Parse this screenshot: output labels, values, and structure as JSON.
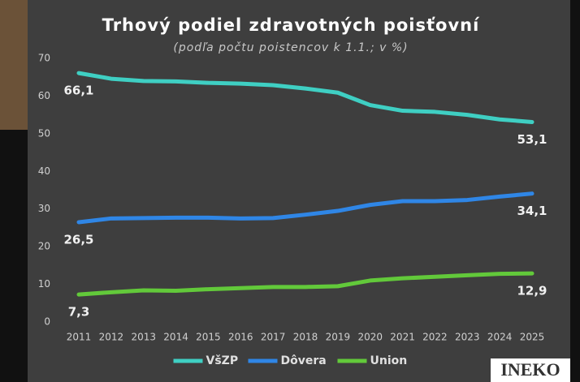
{
  "chart_data": {
    "type": "line",
    "title": "Trhový podiel zdravotných poisťovní",
    "subtitle": "(podľa počtu poistencov k 1.1.; v %)",
    "categories": [
      "2011",
      "2012",
      "2013",
      "2014",
      "2015",
      "2016",
      "2017",
      "2018",
      "2019",
      "2020",
      "2021",
      "2022",
      "2023",
      "2024",
      "2025"
    ],
    "series": [
      {
        "name": "VšZP",
        "color": "#3fcfc3",
        "values": [
          66.1,
          64.6,
          64.0,
          63.9,
          63.5,
          63.3,
          62.9,
          62.0,
          60.9,
          57.6,
          56.1,
          55.8,
          55.0,
          53.8,
          53.1
        ],
        "value_labels": [
          "66,1",
          null,
          null,
          null,
          null,
          null,
          null,
          null,
          null,
          null,
          null,
          null,
          null,
          null,
          "53,1"
        ]
      },
      {
        "name": "Dôvera",
        "color": "#2f86e6",
        "values": [
          26.5,
          27.5,
          27.6,
          27.7,
          27.7,
          27.5,
          27.6,
          28.5,
          29.5,
          31.1,
          32.1,
          32.1,
          32.4,
          33.3,
          34.1
        ],
        "value_labels": [
          "26,5",
          null,
          null,
          null,
          null,
          null,
          null,
          null,
          null,
          null,
          null,
          null,
          null,
          null,
          "34,1"
        ]
      },
      {
        "name": "Union",
        "color": "#62c93a",
        "values": [
          7.3,
          7.9,
          8.4,
          8.3,
          8.7,
          9.0,
          9.3,
          9.3,
          9.5,
          11.0,
          11.6,
          12.0,
          12.4,
          12.8,
          12.9
        ],
        "value_labels": [
          "7,3",
          null,
          null,
          null,
          null,
          null,
          null,
          null,
          null,
          null,
          null,
          null,
          null,
          null,
          "12,9"
        ]
      }
    ],
    "ylim": [
      0,
      70
    ],
    "yticks": [
      0,
      10,
      20,
      30,
      40,
      50,
      60,
      70
    ],
    "grid": false,
    "watermark": "INEKO"
  }
}
